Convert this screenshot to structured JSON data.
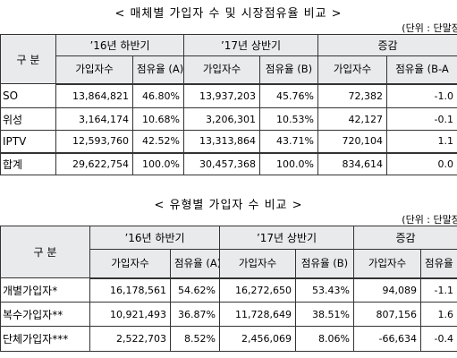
{
  "section1": {
    "title": "< 매체별 가입자 수 및 시장점유율 비교 >",
    "unit": "(단위 : 단말장치",
    "header": [
      "구 분",
      "’16년 하반기",
      "’17년 상반기",
      "증감"
    ],
    "subheader": [
      "가입자수",
      "점유율 (A)",
      "가입자수",
      "점유율 (B)",
      "가입자수",
      "점유율 (B-A"
    ],
    "rows": [
      [
        "SO",
        "13,864,821",
        "46.80%",
        "13,937,203",
        "45.76%",
        "72,382",
        "-1.0"
      ],
      [
        "위성",
        "3,164,174",
        "10.68%",
        "3,206,301",
        "10.53%",
        "42,127",
        "-0.1"
      ],
      [
        "IPTV",
        "12,593,760",
        "42.52%",
        "13,313,864",
        "43.71%",
        "720,104",
        "1.1"
      ],
      [
        "합계",
        "29,622,754",
        "100.0%",
        "30,457,368",
        "100.0%",
        "834,614",
        "0.0"
      ]
    ]
  },
  "section2": {
    "title": "< 유형별 가입자 수 비교 >",
    "unit": "(단위 : 단말장치",
    "header": [
      "구 분",
      "’16년 하반기",
      "’17년 상반기",
      "증감"
    ],
    "subheader": [
      "가입자수",
      "점유율 (A)",
      "가입자수",
      "점유율 (B)",
      "가입자수",
      "점유율 (B-A"
    ],
    "rows": [
      [
        "개별가입자*",
        "16,178,561",
        "54.62%",
        "16,272,650",
        "53.43%",
        "94,089",
        "-1.1"
      ],
      [
        "복수가입자**",
        "10,921,493",
        "36.87%",
        "11,728,649",
        "38.51%",
        "807,156",
        "1.6"
      ],
      [
        "단체가입자***",
        "2,522,703",
        "8.52%",
        "2,456,069",
        "8.06%",
        "-66,634",
        "-0.4"
      ]
    ]
  }
}
